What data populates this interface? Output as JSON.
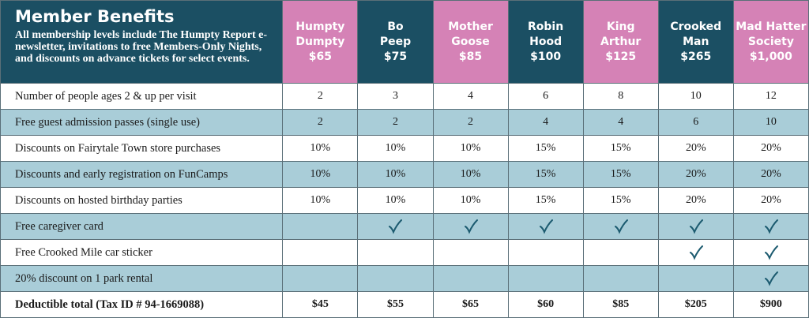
{
  "header": {
    "title": "Member Benefits",
    "description": "All membership levels include The Humpty Report e-newsletter, invitations to free Members-Only Nights, and discounts on advance tickets for select events."
  },
  "columns": [
    {
      "name": [
        "Humpty",
        "Dumpty"
      ],
      "price": "$65"
    },
    {
      "name": [
        "Bo",
        "Peep"
      ],
      "price": "$75"
    },
    {
      "name": [
        "Mother",
        "Goose"
      ],
      "price": "$85"
    },
    {
      "name": [
        "Robin",
        "Hood"
      ],
      "price": "$100"
    },
    {
      "name": [
        "King",
        "Arthur"
      ],
      "price": "$125"
    },
    {
      "name": [
        "Crooked",
        "Man"
      ],
      "price": "$265"
    },
    {
      "name": [
        "Mad Hatter",
        "Society"
      ],
      "price": "$1,000"
    }
  ],
  "rows": [
    {
      "label": "Number of people ages 2 & up per visit",
      "cells": [
        2,
        3,
        4,
        6,
        8,
        10,
        12
      ]
    },
    {
      "label": "Free guest admission passes (single use)",
      "cells": [
        2,
        2,
        2,
        4,
        4,
        6,
        10
      ]
    },
    {
      "label": "Discounts on Fairytale Town store purchases",
      "cells": [
        "10%",
        "10%",
        "10%",
        "15%",
        "15%",
        "20%",
        "20%"
      ]
    },
    {
      "label": "Discounts and early registration on FunCamps",
      "cells": [
        "10%",
        "10%",
        "10%",
        "15%",
        "15%",
        "20%",
        "20%"
      ]
    },
    {
      "label": "Discounts on hosted birthday parties",
      "cells": [
        "10%",
        "10%",
        "10%",
        "15%",
        "15%",
        "20%",
        "20%"
      ]
    },
    {
      "label": "Free caregiver card",
      "cells": [
        null,
        true,
        true,
        true,
        true,
        true,
        true
      ]
    },
    {
      "label": "Free Crooked Mile car sticker",
      "cells": [
        null,
        null,
        null,
        null,
        null,
        true,
        true
      ]
    },
    {
      "label": "20% discount on 1 park rental",
      "cells": [
        null,
        null,
        null,
        null,
        null,
        null,
        true
      ]
    }
  ],
  "total": {
    "label": "Deductible total (Tax ID # 94-1669088)",
    "cells": [
      "$45",
      "$55",
      "$65",
      "$60",
      "$85",
      "$205",
      "$900"
    ]
  }
}
